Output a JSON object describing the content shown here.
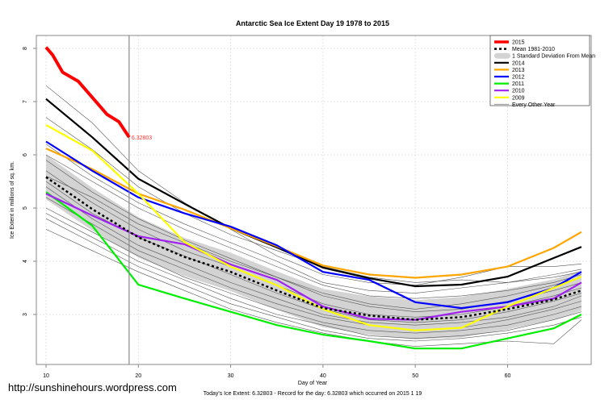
{
  "chart_data": {
    "type": "line",
    "title": "Antarctic Sea Ice Extent Day 19 1978 to 2015",
    "xlabel": "Day of Year",
    "ylabel": "Ice Extent in millions of sq. km.",
    "subtitle": "Today's Ice Extent: 6.32803  - Record for the day: 6.32803 which occurred on 2015 1 19",
    "watermark": "http://sunshinehours.wordpress.com",
    "xlim": [
      10,
      68
    ],
    "ylim": [
      2.2,
      8.25
    ],
    "xticks": [
      10,
      20,
      30,
      40,
      50,
      60
    ],
    "yticks": [
      3,
      4,
      5,
      6,
      7,
      8
    ],
    "grid": true,
    "legend_position": "top-right",
    "current_day": 19,
    "current_value_label": "6.32803",
    "x": [
      10,
      15,
      20,
      25,
      30,
      35,
      40,
      45,
      50,
      55,
      60,
      65,
      68
    ],
    "series_2015": {
      "name": "2015",
      "color": "#ff0000",
      "x": [
        10,
        10.7,
        11.8,
        13.5,
        15.3,
        16.6,
        17.9,
        19
      ],
      "values": [
        8.02,
        7.88,
        7.55,
        7.38,
        7.02,
        6.76,
        6.62,
        6.33
      ]
    },
    "mean": {
      "name": "Mean 1981-2010",
      "color": "#000000",
      "values": [
        5.58,
        4.98,
        4.45,
        4.08,
        3.8,
        3.45,
        3.12,
        2.98,
        2.9,
        2.95,
        3.1,
        3.28,
        3.45
      ]
    },
    "std_band": {
      "name": "1 Standard Deviation From Mean",
      "color": "#d3d3d3",
      "sd": [
        0.42,
        0.4,
        0.38,
        0.36,
        0.36,
        0.36,
        0.36,
        0.36,
        0.37,
        0.38,
        0.38,
        0.38,
        0.38
      ]
    },
    "series": [
      {
        "name": "2014",
        "color": "#000000",
        "values": [
          7.05,
          6.33,
          5.55,
          5.08,
          4.62,
          4.26,
          3.88,
          3.68,
          3.53,
          3.56,
          3.71,
          4.06,
          4.27
        ]
      },
      {
        "name": "2013",
        "color": "#ffa500",
        "values": [
          6.12,
          5.73,
          5.27,
          4.97,
          4.62,
          4.28,
          3.92,
          3.75,
          3.69,
          3.75,
          3.9,
          4.25,
          4.55
        ]
      },
      {
        "name": "2012",
        "color": "#0000ff",
        "values": [
          6.25,
          5.7,
          5.2,
          4.9,
          4.65,
          4.3,
          3.8,
          3.65,
          3.23,
          3.12,
          3.23,
          3.5,
          3.8
        ]
      },
      {
        "name": "2011",
        "color": "#00ee00",
        "values": [
          5.3,
          4.67,
          3.56,
          3.3,
          3.05,
          2.8,
          2.62,
          2.5,
          2.36,
          2.36,
          2.55,
          2.74,
          3.0
        ]
      },
      {
        "name": "2010",
        "color": "#a020f0",
        "values": [
          5.27,
          4.86,
          4.47,
          4.32,
          3.94,
          3.65,
          3.15,
          2.92,
          2.9,
          3.05,
          3.15,
          3.3,
          3.6
        ]
      },
      {
        "name": "2009",
        "color": "#ffff00",
        "values": [
          6.56,
          6.08,
          5.27,
          4.36,
          3.9,
          3.55,
          3.1,
          2.8,
          2.7,
          2.75,
          3.15,
          3.5,
          3.71
        ]
      }
    ],
    "other_years": {
      "name": "Every Other Year",
      "color": "#555555",
      "values": [
        [
          7.3,
          6.6,
          5.7,
          5.1,
          4.6,
          4.1,
          3.75,
          3.6,
          3.55,
          3.7,
          3.9,
          3.9,
          3.95
        ],
        [
          6.7,
          6.1,
          5.4,
          4.9,
          4.5,
          4.2,
          3.9,
          3.7,
          3.6,
          3.65,
          3.6,
          3.7,
          3.8
        ],
        [
          6.0,
          5.5,
          5.0,
          4.6,
          4.25,
          3.9,
          3.55,
          3.35,
          3.3,
          3.35,
          3.45,
          3.6,
          3.75
        ],
        [
          5.9,
          5.3,
          4.8,
          4.4,
          4.05,
          3.7,
          3.35,
          3.15,
          3.05,
          3.1,
          3.25,
          3.45,
          3.6
        ],
        [
          5.7,
          5.1,
          4.6,
          4.2,
          3.9,
          3.55,
          3.2,
          3.0,
          2.95,
          3.0,
          3.15,
          3.35,
          3.5
        ],
        [
          5.5,
          4.9,
          4.45,
          4.1,
          3.75,
          3.4,
          3.1,
          2.9,
          2.85,
          2.9,
          3.05,
          3.25,
          3.4
        ],
        [
          5.4,
          4.8,
          4.3,
          3.95,
          3.6,
          3.3,
          3.0,
          2.85,
          2.8,
          2.85,
          2.95,
          3.15,
          3.35
        ],
        [
          5.2,
          4.7,
          4.2,
          3.85,
          3.5,
          3.2,
          2.95,
          2.8,
          2.7,
          2.75,
          2.9,
          3.1,
          3.25
        ],
        [
          5.0,
          4.55,
          4.1,
          3.7,
          3.4,
          3.1,
          2.85,
          2.7,
          2.65,
          2.7,
          2.8,
          3.0,
          3.15
        ],
        [
          4.9,
          4.45,
          4.0,
          3.65,
          3.3,
          3.0,
          2.8,
          2.6,
          2.55,
          2.6,
          2.7,
          2.9,
          3.05
        ],
        [
          4.8,
          4.35,
          3.9,
          3.55,
          3.2,
          2.95,
          2.7,
          2.55,
          2.5,
          2.55,
          2.65,
          2.8,
          2.95
        ],
        [
          4.6,
          4.2,
          3.8,
          3.45,
          3.1,
          2.85,
          2.65,
          2.5,
          2.4,
          2.45,
          2.5,
          2.45,
          2.9
        ],
        [
          5.6,
          5.2,
          4.7,
          4.35,
          4.0,
          3.7,
          3.4,
          3.2,
          3.1,
          3.2,
          3.35,
          3.55,
          3.7
        ],
        [
          6.2,
          5.6,
          5.1,
          4.7,
          4.35,
          4.0,
          3.6,
          3.45,
          3.4,
          3.5,
          3.6,
          3.75,
          3.85
        ]
      ]
    }
  }
}
